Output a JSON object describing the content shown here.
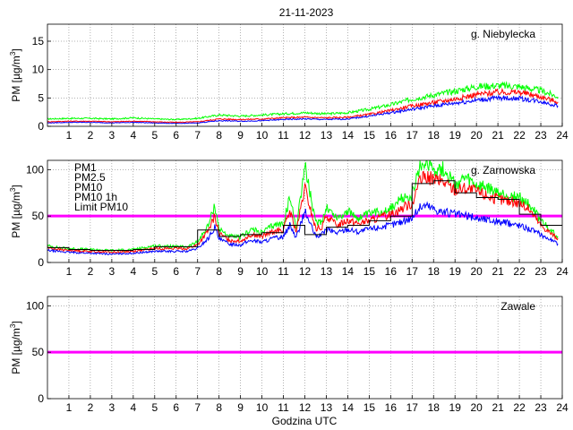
{
  "figure": {
    "title": "21-11-2023",
    "xlabel": "Godzina UTC"
  },
  "colors": {
    "pm1": "#0000ff",
    "pm25": "#ff0000",
    "pm10": "#00ff00",
    "pm10_1h": "#000000",
    "limit": "#ff00ff"
  },
  "chart_data": [
    {
      "type": "line",
      "station": "g. Niebylecka",
      "ylabel": "PM [µg/m3]",
      "xlim": [
        0,
        24
      ],
      "ylim": [
        0,
        18
      ],
      "xticks": [
        1,
        2,
        3,
        4,
        5,
        6,
        7,
        8,
        9,
        10,
        11,
        12,
        13,
        14,
        15,
        16,
        17,
        18,
        19,
        20,
        21,
        22,
        23,
        24
      ],
      "yticks": [
        0,
        5,
        10,
        15
      ],
      "grid": true,
      "legend": "none",
      "series": [
        {
          "key": "pm10",
          "x": [
            0,
            1,
            2,
            3,
            4,
            5,
            6,
            7,
            8,
            9,
            10,
            11,
            12,
            13,
            14,
            15,
            16,
            17,
            18,
            19,
            20,
            21,
            22,
            23,
            23.8
          ],
          "values": [
            1.3,
            1.4,
            1.4,
            1.3,
            1.5,
            1.3,
            1.2,
            1.4,
            2.0,
            1.8,
            2.0,
            2.2,
            2.4,
            2.2,
            2.4,
            3.0,
            3.8,
            4.8,
            5.5,
            6.2,
            7.0,
            7.2,
            7.0,
            6.3,
            5.2
          ]
        },
        {
          "key": "pm25",
          "x": [
            0,
            1,
            2,
            3,
            4,
            5,
            6,
            7,
            8,
            9,
            10,
            11,
            12,
            13,
            14,
            15,
            16,
            17,
            18,
            19,
            20,
            21,
            22,
            23,
            23.8
          ],
          "values": [
            0.8,
            0.9,
            0.9,
            0.8,
            0.9,
            0.8,
            0.7,
            0.8,
            1.3,
            1.2,
            1.3,
            1.5,
            1.6,
            1.5,
            1.6,
            2.1,
            2.8,
            3.6,
            4.2,
            4.8,
            5.6,
            6.0,
            6.0,
            5.2,
            4.3
          ]
        },
        {
          "key": "pm1",
          "x": [
            0,
            1,
            2,
            3,
            4,
            5,
            6,
            7,
            8,
            9,
            10,
            11,
            12,
            13,
            14,
            15,
            16,
            17,
            18,
            19,
            20,
            21,
            22,
            23,
            23.8
          ],
          "values": [
            0.6,
            0.7,
            0.7,
            0.6,
            0.7,
            0.6,
            0.5,
            0.6,
            1.0,
            0.9,
            1.0,
            1.2,
            1.3,
            1.2,
            1.3,
            1.8,
            2.4,
            3.0,
            3.6,
            4.1,
            4.6,
            5.0,
            4.9,
            4.4,
            3.6
          ]
        }
      ]
    },
    {
      "type": "line",
      "station": "g. Zarnowska",
      "ylabel": "PM [µg/m3]",
      "xlim": [
        0,
        24
      ],
      "ylim": [
        0,
        110
      ],
      "xticks": [
        1,
        2,
        3,
        4,
        5,
        6,
        7,
        8,
        9,
        10,
        11,
        12,
        13,
        14,
        15,
        16,
        17,
        18,
        19,
        20,
        21,
        22,
        23,
        24
      ],
      "yticks": [
        0,
        50,
        100
      ],
      "grid": true,
      "legend": "top-left",
      "legend_entries": [
        {
          "key": "pm1",
          "label": "PM1"
        },
        {
          "key": "pm25",
          "label": "PM2.5"
        },
        {
          "key": "pm10",
          "label": "PM10"
        },
        {
          "key": "pm10_1h",
          "label": "PM10 1h"
        },
        {
          "key": "limit",
          "label": "Limit PM10"
        }
      ],
      "limit": 50,
      "series": [
        {
          "key": "pm10",
          "x": [
            0,
            0.5,
            1,
            2,
            3,
            4,
            5,
            6,
            6.5,
            7,
            7.5,
            7.8,
            8,
            8.5,
            9,
            9.5,
            10,
            10.5,
            11,
            11.3,
            11.6,
            12,
            12.5,
            12.8,
            13,
            13.5,
            14,
            14.5,
            15,
            15.5,
            16,
            16.5,
            17,
            17.3,
            17.6,
            18,
            18.5,
            19,
            19.5,
            20,
            20.5,
            21,
            21.5,
            22,
            22.5,
            23,
            23.5,
            23.8
          ],
          "values": [
            18,
            16,
            15,
            14,
            13,
            14,
            18,
            17,
            17,
            22,
            40,
            62,
            36,
            28,
            27,
            36,
            32,
            40,
            42,
            70,
            38,
            105,
            42,
            45,
            60,
            48,
            55,
            48,
            52,
            55,
            58,
            68,
            72,
            98,
            110,
            102,
            100,
            84,
            90,
            82,
            80,
            74,
            72,
            70,
            62,
            45,
            34,
            28
          ]
        },
        {
          "key": "pm25",
          "x": [
            0,
            0.5,
            1,
            2,
            3,
            4,
            5,
            6,
            6.5,
            7,
            7.5,
            7.8,
            8,
            8.5,
            9,
            9.5,
            10,
            10.5,
            11,
            11.3,
            11.6,
            12,
            12.5,
            12.8,
            13,
            13.5,
            14,
            14.5,
            15,
            15.5,
            16,
            16.5,
            17,
            17.3,
            17.6,
            18,
            18.5,
            19,
            19.5,
            20,
            20.5,
            21,
            21.5,
            22,
            22.5,
            23,
            23.5,
            23.8
          ],
          "values": [
            16,
            14,
            13,
            12,
            11,
            12,
            15,
            15,
            15,
            19,
            34,
            50,
            31,
            24,
            23,
            30,
            28,
            33,
            35,
            55,
            33,
            80,
            36,
            38,
            50,
            40,
            46,
            42,
            45,
            48,
            52,
            58,
            64,
            85,
            92,
            90,
            86,
            78,
            80,
            76,
            72,
            68,
            66,
            64,
            56,
            40,
            31,
            26
          ]
        },
        {
          "key": "pm1",
          "x": [
            0,
            0.5,
            1,
            2,
            3,
            4,
            5,
            6,
            6.5,
            7,
            7.5,
            7.8,
            8,
            8.5,
            9,
            9.5,
            10,
            10.5,
            11,
            11.3,
            11.6,
            12,
            12.5,
            12.8,
            13,
            13.5,
            14,
            14.5,
            15,
            15.5,
            16,
            16.5,
            17,
            17.3,
            17.6,
            18,
            18.5,
            19,
            19.5,
            20,
            20.5,
            21,
            21.5,
            22,
            22.5,
            23,
            23.5,
            23.8
          ],
          "values": [
            13,
            12,
            11,
            10,
            9,
            10,
            12,
            12,
            12,
            15,
            26,
            38,
            25,
            20,
            19,
            24,
            22,
            26,
            28,
            40,
            27,
            55,
            28,
            30,
            36,
            32,
            36,
            33,
            36,
            38,
            40,
            44,
            48,
            58,
            62,
            58,
            54,
            52,
            50,
            48,
            46,
            44,
            42,
            40,
            36,
            30,
            24,
            20
          ]
        },
        {
          "key": "pm10_1h",
          "step": true,
          "x": [
            0,
            1,
            2,
            3,
            4,
            5,
            6,
            7,
            8,
            9,
            10,
            11,
            12,
            13,
            14,
            15,
            16,
            17,
            18,
            19,
            20,
            21,
            22,
            23
          ],
          "values": [
            16,
            14,
            13,
            13,
            14,
            17,
            17,
            35,
            28,
            30,
            32,
            40,
            30,
            38,
            40,
            45,
            50,
            85,
            88,
            75,
            70,
            68,
            52,
            40
          ]
        }
      ]
    },
    {
      "type": "line",
      "station": "Zawale",
      "ylabel": "PM [µg/m3]",
      "xlim": [
        0,
        24
      ],
      "ylim": [
        0,
        110
      ],
      "xticks": [
        1,
        2,
        3,
        4,
        5,
        6,
        7,
        8,
        9,
        10,
        11,
        12,
        13,
        14,
        15,
        16,
        17,
        18,
        19,
        20,
        21,
        22,
        23,
        24
      ],
      "yticks": [
        0,
        50,
        100
      ],
      "grid": true,
      "legend": "none",
      "limit": 50,
      "series": []
    }
  ]
}
